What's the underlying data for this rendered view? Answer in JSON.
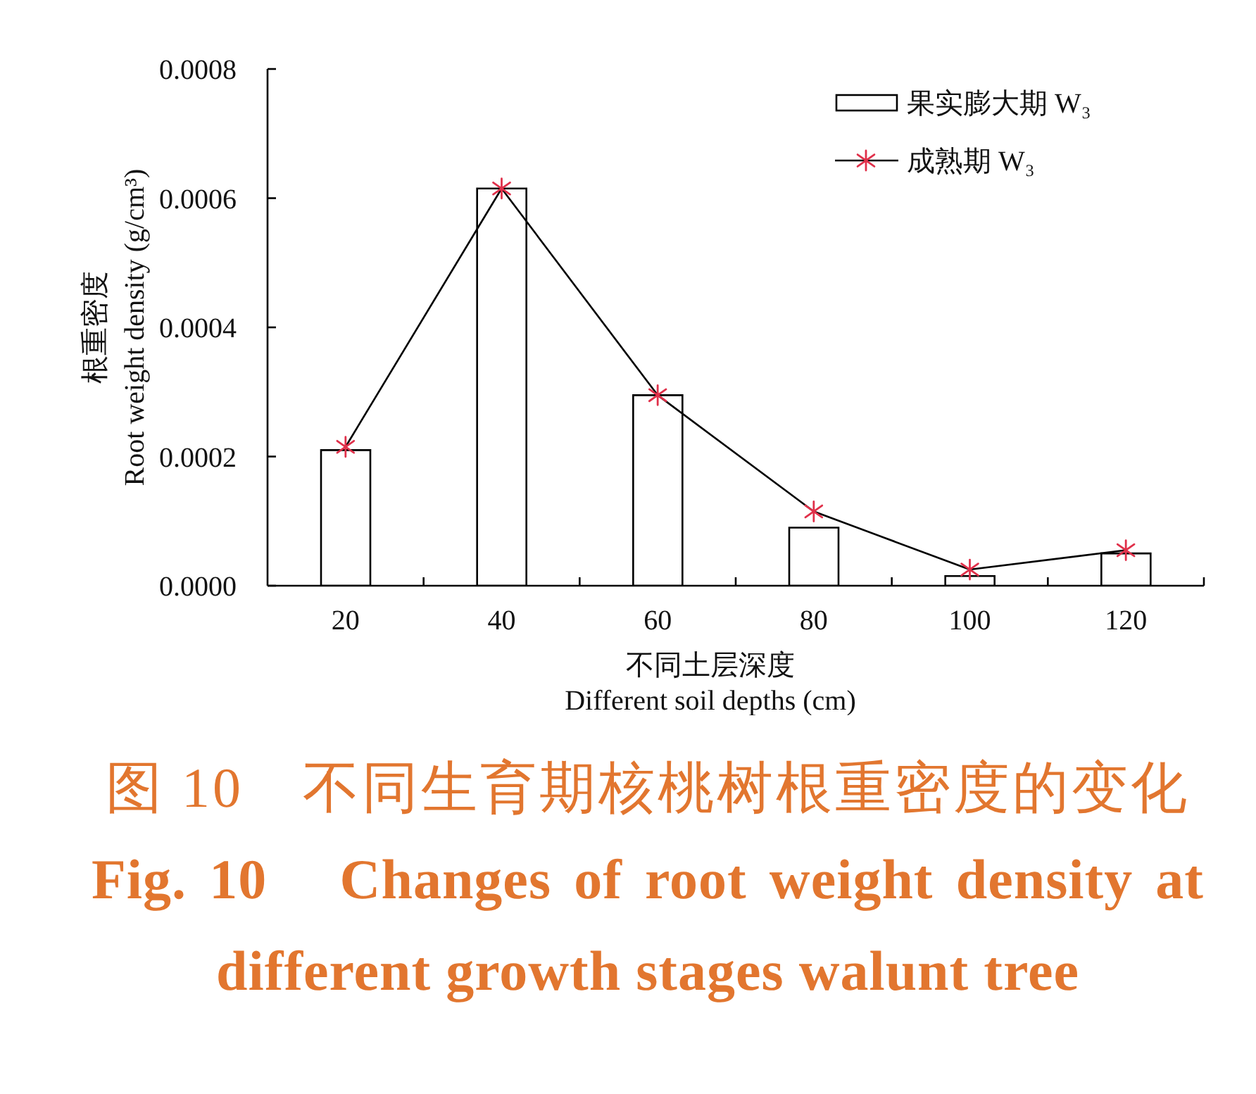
{
  "chart_data": {
    "type": "bar",
    "title": "图 10　不同生育期核桃树根重密度的变化",
    "subtitle": "Fig. 10　Changes of root weight density at different growth stages walunt tree",
    "xlabel": "不同土层深度\nDifferent soil depths (cm)",
    "ylabel": "根重密度\nRoot weight density (g/cm³)",
    "categories": [
      "20",
      "40",
      "60",
      "80",
      "100",
      "120"
    ],
    "series": [
      {
        "name": "果实膨大期 W₃",
        "color": "#ffffff",
        "values": [
          0.00021,
          0.000615,
          0.000295,
          9e-05,
          1.5e-05,
          5e-05
        ]
      },
      {
        "name": "成熟期 W₃",
        "type": "line",
        "color": "#e0304a",
        "values": [
          0.000215,
          0.000615,
          0.000295,
          0.000115,
          2.5e-05,
          5.5e-05
        ]
      }
    ],
    "ylim": [
      0,
      0.0008
    ],
    "yticks": [
      {
        "value": 0,
        "label": "0.0000"
      },
      0.0002,
      0.0004,
      0.0006,
      0.0008
    ],
    "marker": "cross",
    "grid": false,
    "legend": "top right"
  }
}
